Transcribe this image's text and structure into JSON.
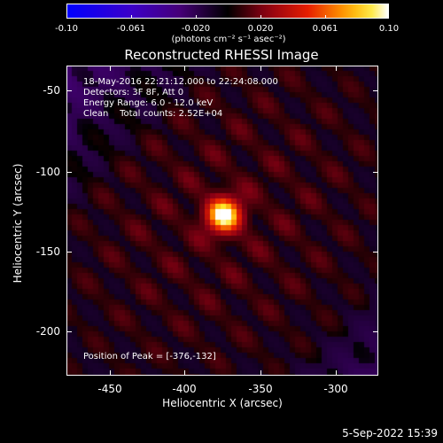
{
  "colorbar": {
    "ticks": [
      "-0.10",
      "-0.061",
      "-0.020",
      "0.020",
      "0.061",
      "0.10"
    ],
    "units": "(photons cm⁻² s⁻¹ asec⁻²)",
    "range": [
      -0.1,
      0.1
    ]
  },
  "title": "Reconstructed RHESSI Image",
  "info": {
    "line1": "18-May-2016 22:21:12.000 to 22:24:08.000",
    "line2": "Detectors: 3F 8F, Att 0",
    "line3": "Energy Range: 6.0 - 12.0 keV",
    "line4": "Clean    Total counts: 2.52E+04"
  },
  "peak_text": "Position of Peak = [-376,-132]",
  "x_axis": {
    "label": "Heliocentric X (arcsec)",
    "ticks": [
      "-450",
      "-400",
      "-350",
      "-300"
    ],
    "range": [
      -476,
      -278
    ]
  },
  "y_axis": {
    "label": "Heliocentric Y (arcsec)",
    "ticks": [
      "-50",
      "-100",
      "-150",
      "-200"
    ],
    "range": [
      -37,
      -234
    ]
  },
  "timestamp": "5-Sep-2022 15:39",
  "image": {
    "peak": [
      -376,
      -132
    ]
  }
}
